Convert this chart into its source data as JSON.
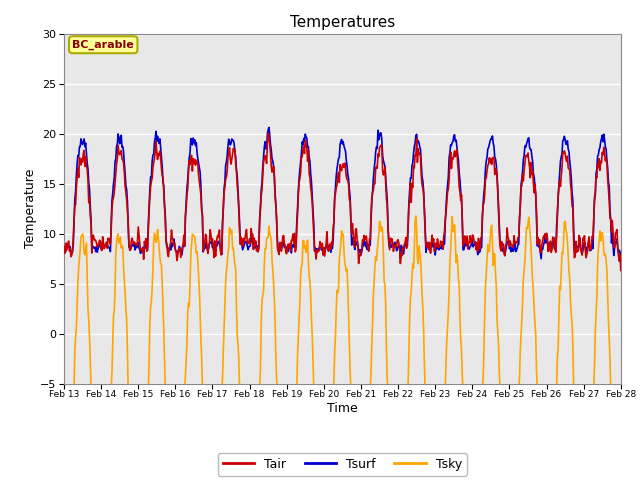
{
  "title": "Temperatures",
  "xlabel": "Time",
  "ylabel": "Temperature",
  "ylim": [
    -5,
    30
  ],
  "yticks": [
    -5,
    0,
    5,
    10,
    15,
    20,
    25,
    30
  ],
  "plot_bg_color": "#e8e8e8",
  "tair_color": "#cc0000",
  "tsurf_color": "#0000cc",
  "tsky_color": "#ffa500",
  "annotation_text": "BC_arable",
  "annotation_color": "#8B0000",
  "annotation_bg": "#ffff99",
  "annotation_edge": "#aaaa00",
  "line_width": 1.2,
  "fig_bg_color": "#ffffff"
}
